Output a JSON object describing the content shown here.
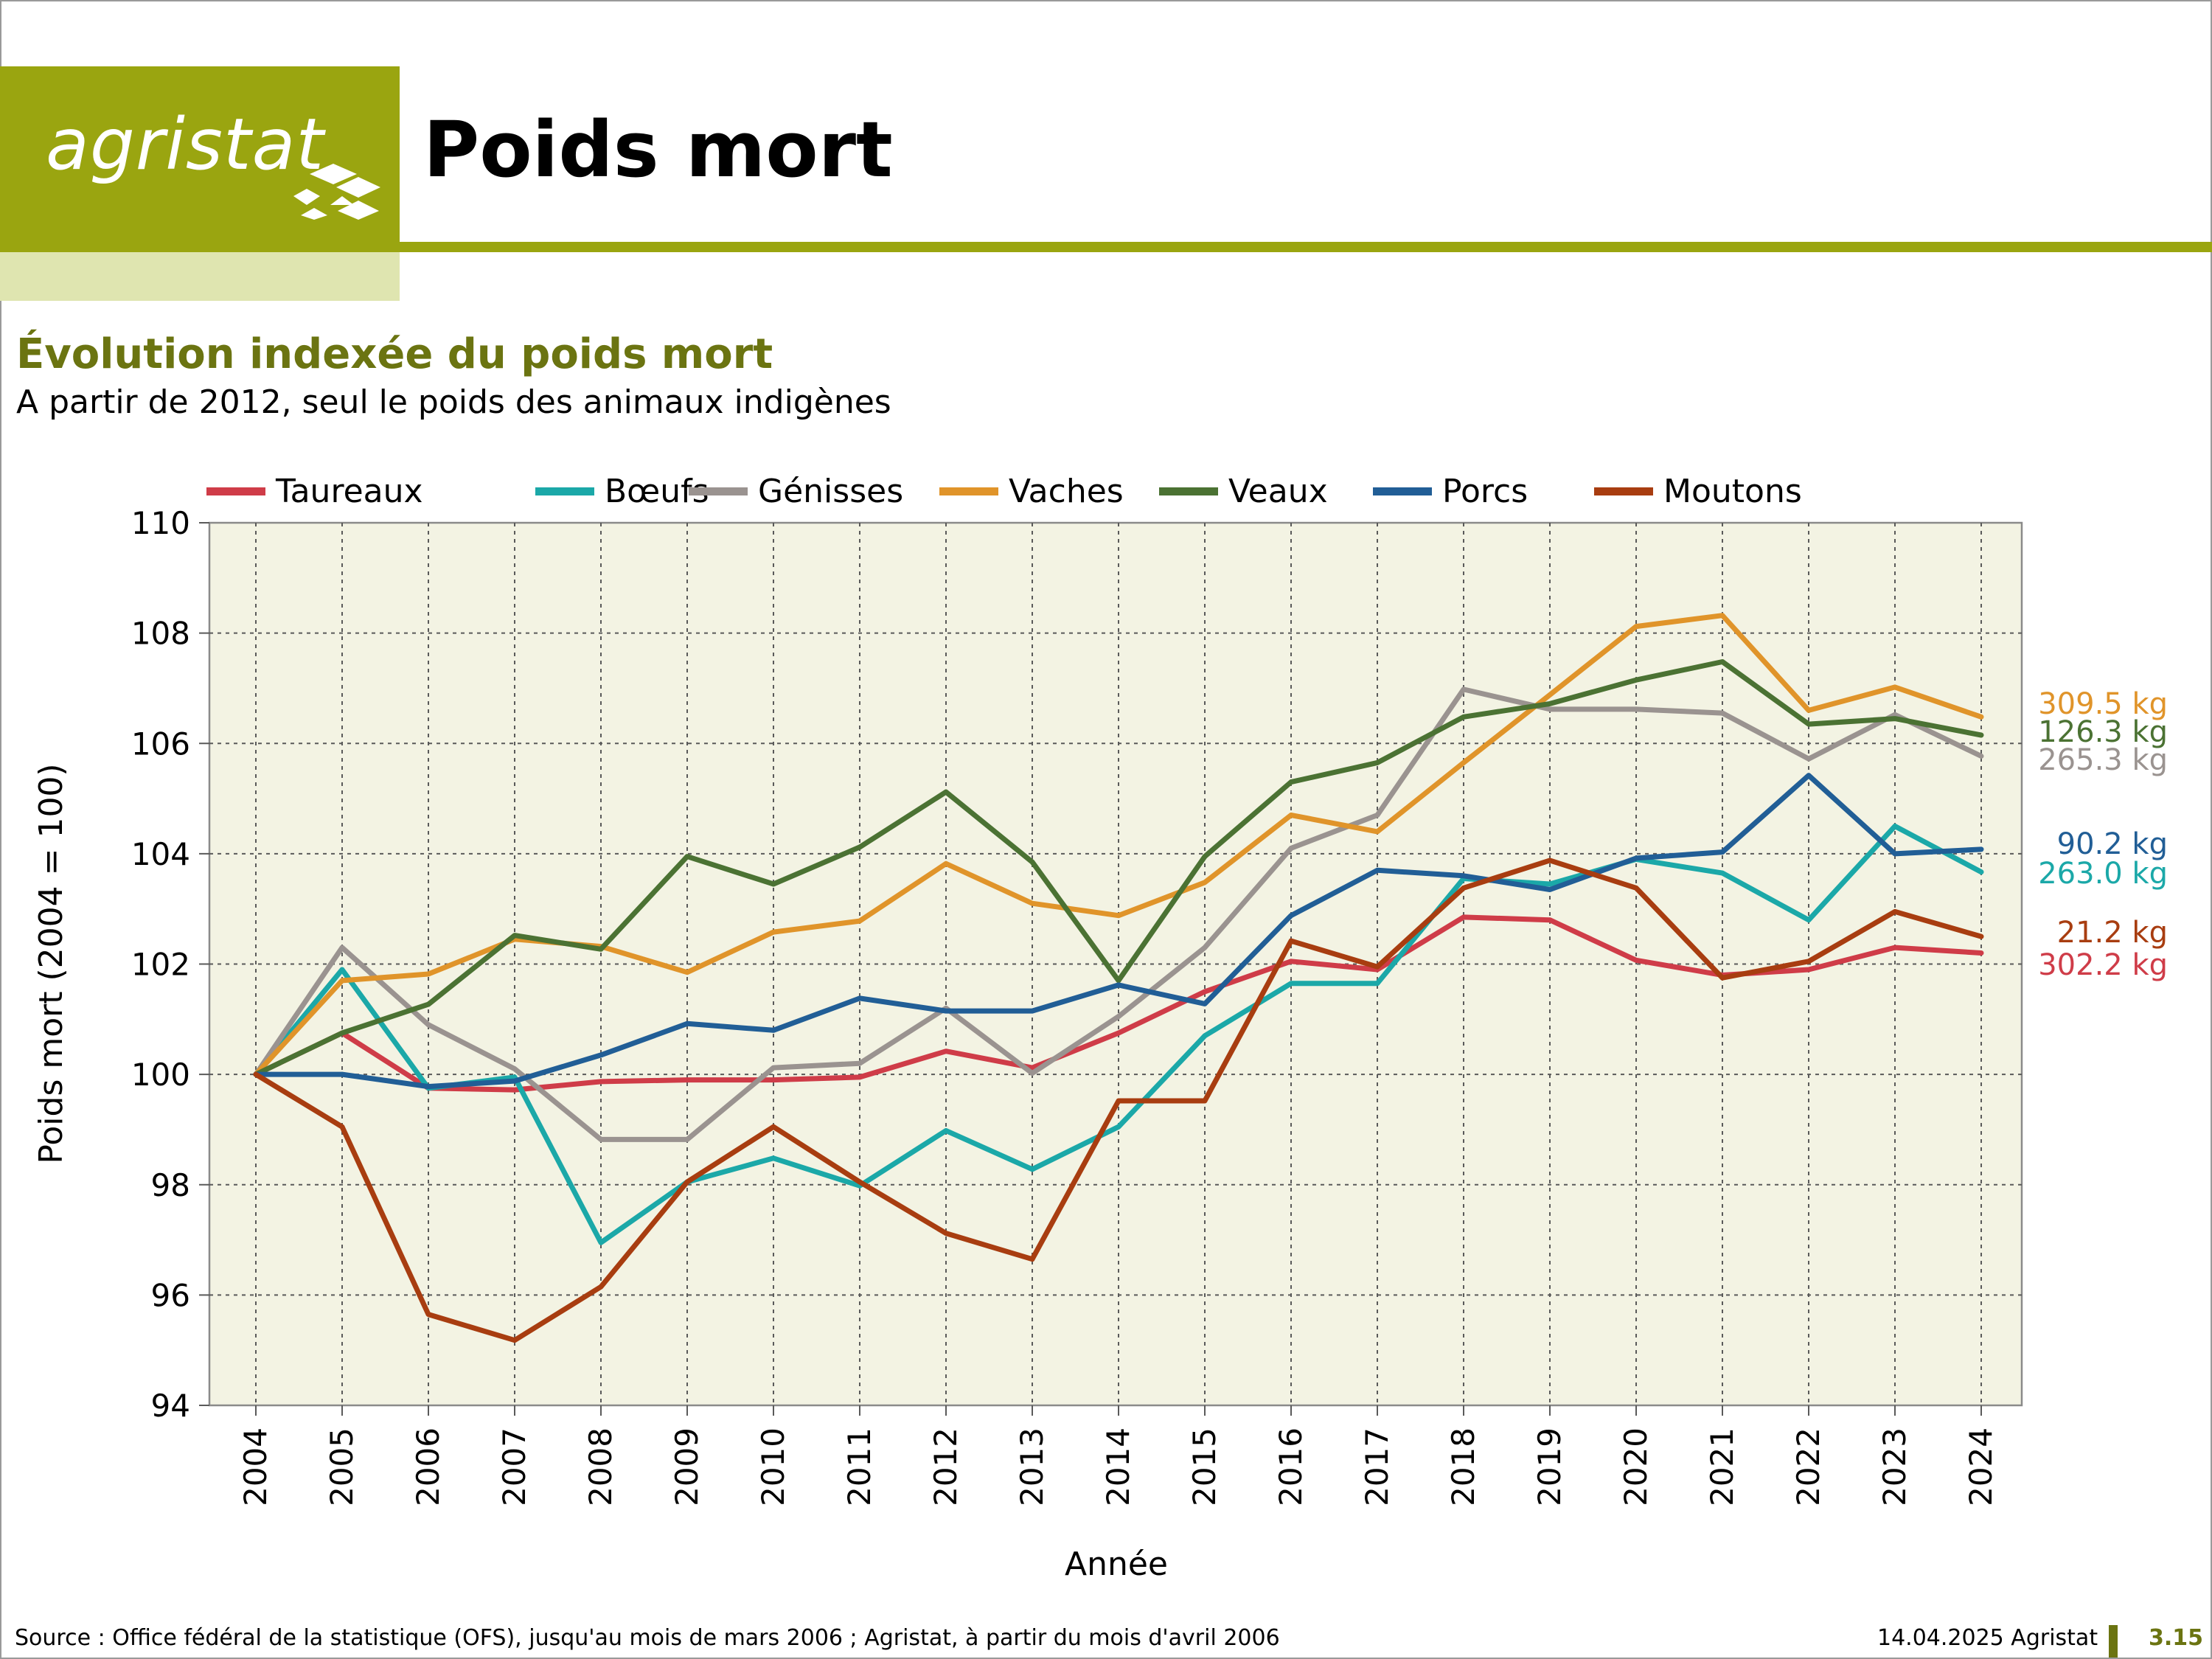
{
  "brand": {
    "logo_text": "agristat"
  },
  "header": {
    "title": "Poids mort"
  },
  "subtitle": "Évolution indexée du poids mort",
  "subsubtitle": "A partir de 2012, seul le poids des animaux indigènes",
  "colors": {
    "brand_green": "#9aa510",
    "brand_light": "#dfe5b0",
    "plot_bg": "#f3f3e3",
    "Taureaux": "#cf3c48",
    "Bœufs": "#1ba8a8",
    "Génisses": "#9a9390",
    "Vaches": "#e0942a",
    "Veaux": "#4b7233",
    "Porcs": "#215e96",
    "Moutons": "#a83d10"
  },
  "chart_data": {
    "type": "line",
    "title": "",
    "xlabel": "Année",
    "ylabel": "Poids mort (2004 = 100)",
    "ylim": [
      94,
      110
    ],
    "yticks": [
      94,
      96,
      98,
      100,
      102,
      104,
      106,
      108,
      110
    ],
    "grid": true,
    "legend": "top",
    "x": [
      "2004",
      "2005",
      "2006",
      "2007",
      "2008",
      "2009",
      "2010",
      "2011",
      "2012",
      "2013",
      "2014",
      "2015",
      "2016",
      "2017",
      "2018",
      "2019",
      "2020",
      "2021",
      "2022",
      "2023",
      "2024"
    ],
    "series": [
      {
        "name": "Taureaux",
        "end_label": "302.2 kg",
        "values": [
          100,
          100.75,
          99.75,
          99.72,
          99.87,
          99.9,
          99.9,
          99.95,
          100.42,
          100.12,
          100.75,
          101.5,
          102.05,
          101.9,
          102.85,
          102.8,
          102.07,
          101.8,
          101.9,
          102.3,
          102.2
        ]
      },
      {
        "name": "Bœufs",
        "end_label": "263.0 kg",
        "values": [
          100,
          101.9,
          99.75,
          99.95,
          96.95,
          98.05,
          98.48,
          97.98,
          98.98,
          98.28,
          99.05,
          100.7,
          101.65,
          101.65,
          103.55,
          103.45,
          103.9,
          103.65,
          102.8,
          104.5,
          103.67
        ]
      },
      {
        "name": "Génisses",
        "end_label": "265.3 kg",
        "values": [
          100,
          102.3,
          100.9,
          100.1,
          98.82,
          98.82,
          100.12,
          100.2,
          101.2,
          100.02,
          101.05,
          102.3,
          104.1,
          104.7,
          106.98,
          106.62,
          106.62,
          106.55,
          105.72,
          106.52,
          105.77
        ]
      },
      {
        "name": "Vaches",
        "end_label": "309.5 kg",
        "values": [
          100,
          101.7,
          101.82,
          102.45,
          102.32,
          101.85,
          102.58,
          102.78,
          103.82,
          103.1,
          102.88,
          103.48,
          104.7,
          104.4,
          105.65,
          106.88,
          108.12,
          108.32,
          106.6,
          107.02,
          106.48
        ]
      },
      {
        "name": "Veaux",
        "end_label": "126.3 kg",
        "values": [
          100,
          100.75,
          101.27,
          102.52,
          102.27,
          103.95,
          103.45,
          104.12,
          105.12,
          103.85,
          101.7,
          103.95,
          105.3,
          105.65,
          106.48,
          106.72,
          107.15,
          107.48,
          106.35,
          106.45,
          106.15
        ]
      },
      {
        "name": "Porcs",
        "end_label": "90.2 kg",
        "values": [
          100,
          100,
          99.78,
          99.88,
          100.35,
          100.92,
          100.8,
          101.38,
          101.15,
          101.15,
          101.62,
          101.28,
          102.88,
          103.7,
          103.6,
          103.35,
          103.92,
          104.03,
          105.42,
          104.0,
          104.08
        ]
      },
      {
        "name": "Moutons",
        "end_label": "21.2 kg",
        "values": [
          100,
          99.05,
          95.65,
          95.18,
          96.15,
          98.05,
          99.05,
          98.05,
          97.12,
          96.65,
          99.52,
          99.52,
          102.42,
          101.95,
          103.38,
          103.88,
          103.38,
          101.75,
          102.05,
          102.95,
          102.5
        ]
      }
    ],
    "end_label_order": [
      "Vaches",
      "Veaux",
      "Génisses",
      "Porcs",
      "Bœufs",
      "Moutons",
      "Taureaux"
    ]
  },
  "footer": {
    "source": "Source : Office fédéral de la statistique (OFS), jusqu'au mois de mars 2006 ; Agristat, à partir du mois d'avril 2006",
    "date": "14.04.2025 Agristat",
    "page": "3.15"
  }
}
